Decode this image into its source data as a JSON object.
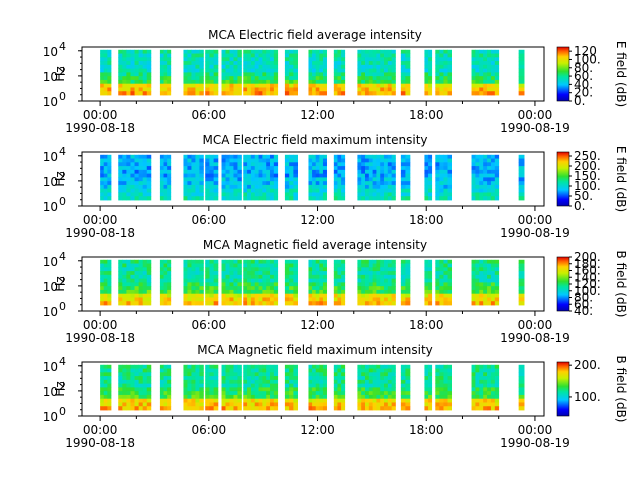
{
  "chart_data": [
    {
      "type": "heatmap",
      "title": "MCA  Electric field average intensity",
      "ylabel": "Hz",
      "yscale": "log",
      "ylim": [
        1,
        20000
      ],
      "ytick_exponents": [
        "0",
        "2",
        "4"
      ],
      "xlim": [
        "1990-08-17 23:00",
        "1990-08-19 00:30"
      ],
      "xticks": [
        {
          "time": "00:00",
          "date": "1990-08-18"
        },
        {
          "time": "06:00",
          "date": ""
        },
        {
          "time": "12:00",
          "date": ""
        },
        {
          "time": "18:00",
          "date": ""
        },
        {
          "time": "00:00",
          "date": "1990-08-19"
        }
      ],
      "colorbar": {
        "label": "E field (dB)",
        "range": [
          0,
          130
        ],
        "ticks": [
          "0.",
          "20.",
          "40.",
          "60.",
          "80.",
          "100.",
          "120"
        ]
      },
      "data_segments_hours": [
        [
          0.0,
          0.6
        ],
        [
          1.0,
          2.8
        ],
        [
          3.3,
          3.9
        ],
        [
          4.6,
          5.7
        ],
        [
          5.8,
          6.5
        ],
        [
          6.7,
          7.8
        ],
        [
          7.9,
          9.8
        ],
        [
          10.2,
          10.9
        ],
        [
          11.5,
          12.5
        ],
        [
          12.9,
          13.5
        ],
        [
          14.2,
          16.3
        ],
        [
          16.6,
          17.1
        ],
        [
          17.9,
          18.3
        ],
        [
          18.5,
          19.4
        ],
        [
          20.5,
          22.0
        ],
        [
          23.1,
          23.4
        ]
      ],
      "intensity_profile": {
        "low_freq": 100,
        "mid_freq": 60,
        "high_freq": 50
      }
    },
    {
      "type": "heatmap",
      "title": "MCA  Electric field maximum intensity",
      "ylabel": "Hz",
      "yscale": "log",
      "ylim": [
        1,
        20000
      ],
      "ytick_exponents": [
        "0",
        "2",
        "4"
      ],
      "xlim": [
        "1990-08-17 23:00",
        "1990-08-19 00:30"
      ],
      "xticks": [
        {
          "time": "00:00",
          "date": "1990-08-18"
        },
        {
          "time": "06:00",
          "date": ""
        },
        {
          "time": "12:00",
          "date": ""
        },
        {
          "time": "18:00",
          "date": ""
        },
        {
          "time": "00:00",
          "date": "1990-08-19"
        }
      ],
      "colorbar": {
        "label": "E field (dB)",
        "range": [
          0,
          270
        ],
        "ticks": [
          "0.",
          "50.",
          "100.",
          "150.",
          "200.",
          "250."
        ]
      },
      "data_segments_hours": [
        [
          0.0,
          0.6
        ],
        [
          1.0,
          2.8
        ],
        [
          3.3,
          3.9
        ],
        [
          4.6,
          5.7
        ],
        [
          5.8,
          6.5
        ],
        [
          6.7,
          7.8
        ],
        [
          7.9,
          9.8
        ],
        [
          10.2,
          10.9
        ],
        [
          11.5,
          12.5
        ],
        [
          12.9,
          13.5
        ],
        [
          14.2,
          16.3
        ],
        [
          16.6,
          17.1
        ],
        [
          17.9,
          18.3
        ],
        [
          18.5,
          19.4
        ],
        [
          20.5,
          22.0
        ],
        [
          23.1,
          23.4
        ]
      ],
      "intensity_profile": {
        "low_freq": 100,
        "mid_freq": 80,
        "high_freq": 75
      }
    },
    {
      "type": "heatmap",
      "title": "MCA  Magnetic field average intensity",
      "ylabel": "Hz",
      "yscale": "log",
      "ylim": [
        1,
        20000
      ],
      "ytick_exponents": [
        "0",
        "2",
        "4"
      ],
      "xlim": [
        "1990-08-17 23:00",
        "1990-08-19 00:30"
      ],
      "xticks": [
        {
          "time": "00:00",
          "date": "1990-08-18"
        },
        {
          "time": "06:00",
          "date": ""
        },
        {
          "time": "12:00",
          "date": ""
        },
        {
          "time": "18:00",
          "date": ""
        },
        {
          "time": "00:00",
          "date": "1990-08-19"
        }
      ],
      "colorbar": {
        "label": "B field (dB)",
        "range": [
          40,
          200
        ],
        "ticks": [
          "40.",
          "60.",
          "80.",
          "100.",
          "120.",
          "140.",
          "160.",
          "180.",
          "200."
        ]
      },
      "data_segments_hours": [
        [
          0.0,
          0.6
        ],
        [
          1.0,
          2.8
        ],
        [
          3.3,
          3.9
        ],
        [
          4.6,
          5.7
        ],
        [
          5.8,
          6.5
        ],
        [
          6.7,
          7.8
        ],
        [
          7.9,
          9.8
        ],
        [
          10.2,
          10.9
        ],
        [
          11.5,
          12.5
        ],
        [
          12.9,
          13.5
        ],
        [
          14.2,
          16.3
        ],
        [
          16.6,
          17.1
        ],
        [
          17.9,
          18.3
        ],
        [
          18.5,
          19.4
        ],
        [
          20.5,
          22.0
        ],
        [
          23.1,
          23.4
        ]
      ],
      "intensity_profile": {
        "low_freq": 160,
        "mid_freq": 120,
        "high_freq": 110
      }
    },
    {
      "type": "heatmap",
      "title": "MCA  Magnetic field maximum intensity",
      "ylabel": "Hz",
      "yscale": "log",
      "ylim": [
        1,
        20000
      ],
      "ytick_exponents": [
        "0",
        "2",
        "4"
      ],
      "xlim": [
        "1990-08-17 23:00",
        "1990-08-19 00:30"
      ],
      "xticks": [
        {
          "time": "00:00",
          "date": "1990-08-18"
        },
        {
          "time": "06:00",
          "date": ""
        },
        {
          "time": "12:00",
          "date": ""
        },
        {
          "time": "18:00",
          "date": ""
        },
        {
          "time": "00:00",
          "date": "1990-08-19"
        }
      ],
      "colorbar": {
        "label": "B field (dB)",
        "range": [
          40,
          210
        ],
        "ticks": [
          "100.",
          "200."
        ]
      },
      "data_segments_hours": [
        [
          0.0,
          0.6
        ],
        [
          1.0,
          2.8
        ],
        [
          3.3,
          3.9
        ],
        [
          4.6,
          5.7
        ],
        [
          5.8,
          6.5
        ],
        [
          6.7,
          7.8
        ],
        [
          7.9,
          9.8
        ],
        [
          10.2,
          10.9
        ],
        [
          11.5,
          12.5
        ],
        [
          12.9,
          13.5
        ],
        [
          14.2,
          16.3
        ],
        [
          16.6,
          17.1
        ],
        [
          17.9,
          18.3
        ],
        [
          18.5,
          19.4
        ],
        [
          20.5,
          22.0
        ],
        [
          23.1,
          23.4
        ]
      ],
      "intensity_profile": {
        "low_freq": 170,
        "mid_freq": 125,
        "high_freq": 115
      }
    }
  ]
}
